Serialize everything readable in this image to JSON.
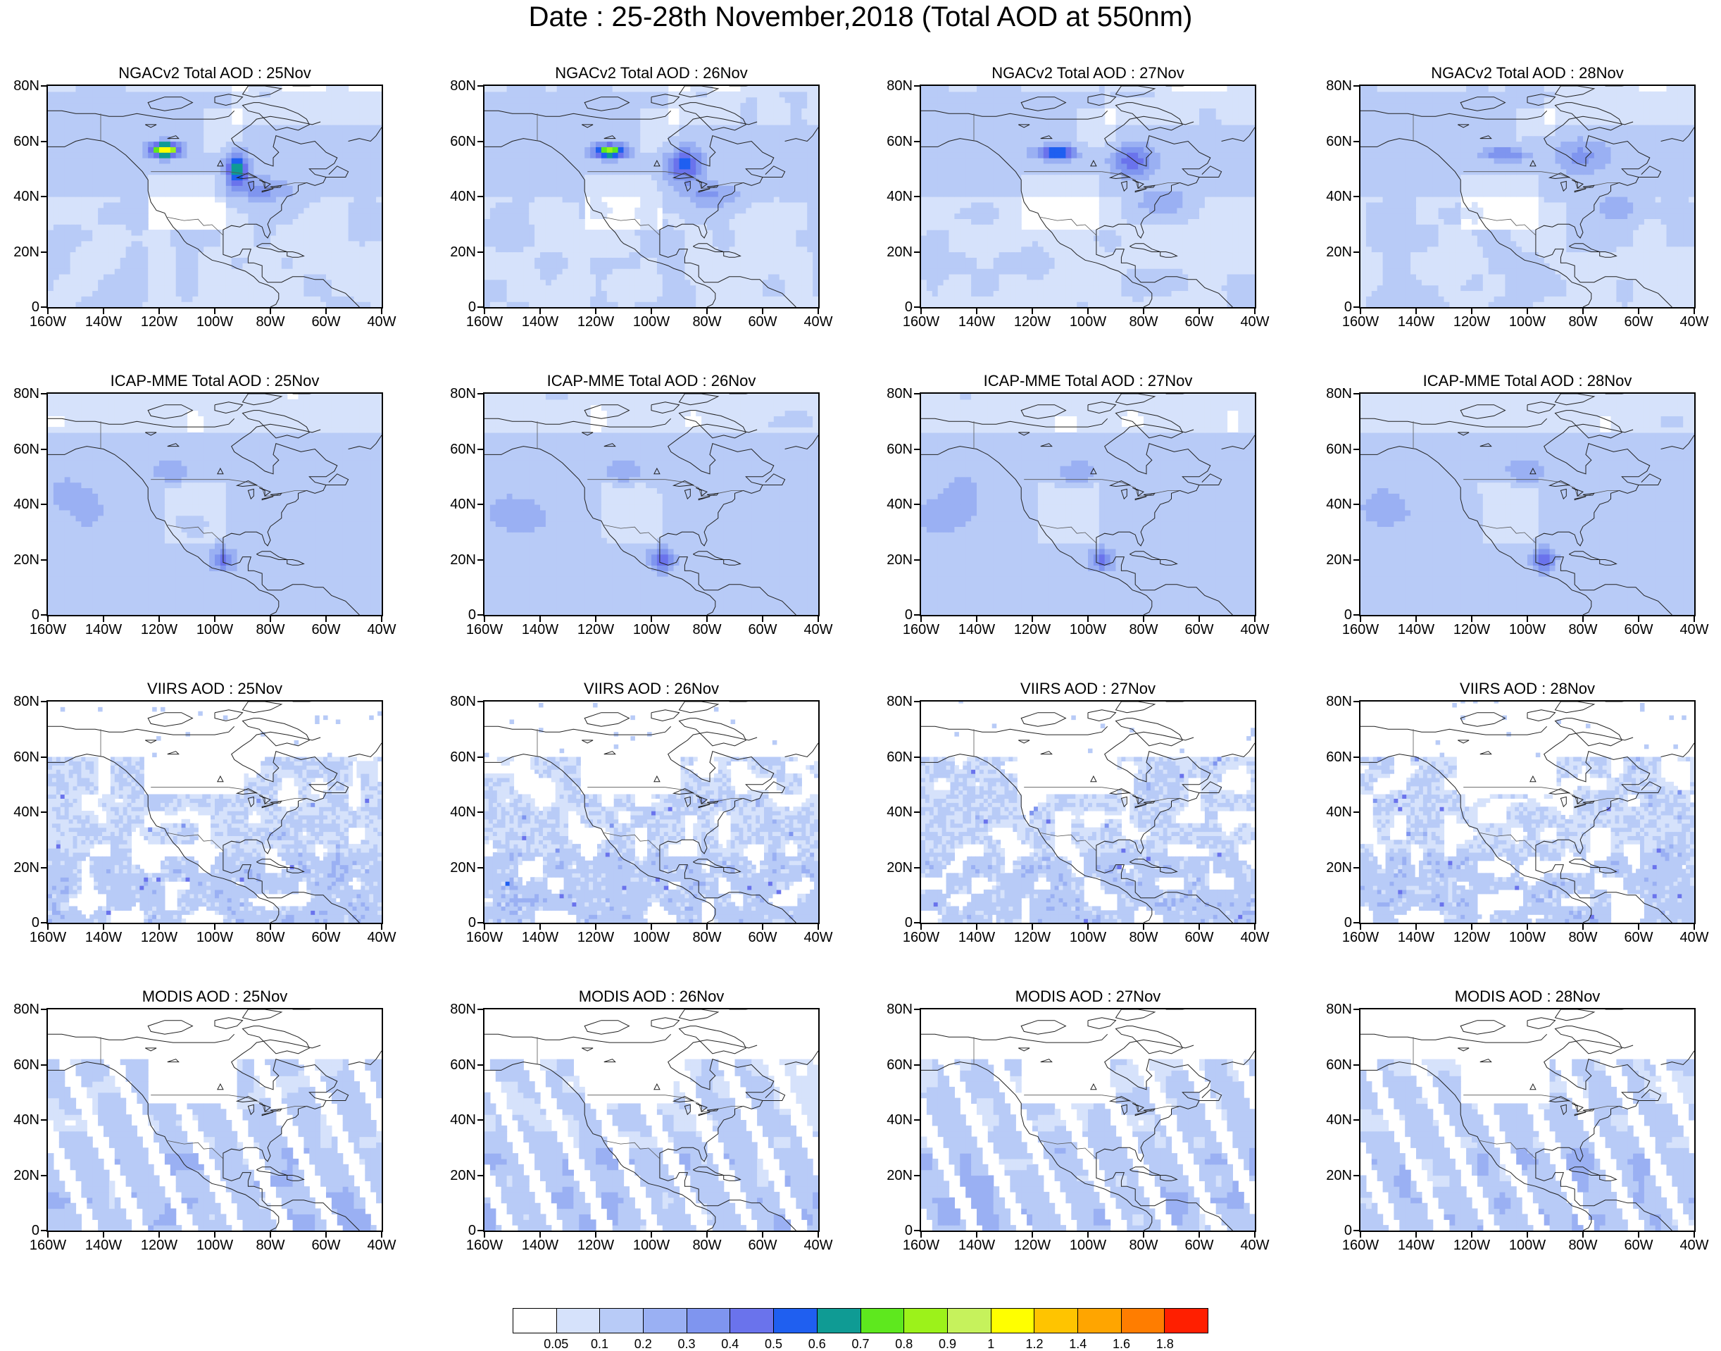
{
  "title": "Date : 25-28th November,2018 (Total AOD at 550nm)",
  "lat_labels": [
    "80N",
    "60N",
    "40N",
    "20N",
    "0"
  ],
  "lon_labels": [
    "160W",
    "140W",
    "120W",
    "100W",
    "80W",
    "60W",
    "40W"
  ],
  "panels": [
    {
      "title": "NGACv2 Total AOD : 25Nov",
      "model": "ngac",
      "day": 25
    },
    {
      "title": "NGACv2 Total AOD : 26Nov",
      "model": "ngac",
      "day": 26
    },
    {
      "title": "NGACv2 Total AOD : 27Nov",
      "model": "ngac",
      "day": 27
    },
    {
      "title": "NGACv2 Total AOD : 28Nov",
      "model": "ngac",
      "day": 28
    },
    {
      "title": "ICAP-MME Total AOD : 25Nov",
      "model": "icap",
      "day": 25
    },
    {
      "title": "ICAP-MME Total AOD : 26Nov",
      "model": "icap",
      "day": 26
    },
    {
      "title": "ICAP-MME Total AOD : 27Nov",
      "model": "icap",
      "day": 27
    },
    {
      "title": "ICAP-MME Total AOD : 28Nov",
      "model": "icap",
      "day": 28
    },
    {
      "title": "VIIRS AOD : 25Nov",
      "model": "viirs",
      "day": 25
    },
    {
      "title": "VIIRS AOD : 26Nov",
      "model": "viirs",
      "day": 26
    },
    {
      "title": "VIIRS AOD : 27Nov",
      "model": "viirs",
      "day": 27
    },
    {
      "title": "VIIRS AOD : 28Nov",
      "model": "viirs",
      "day": 28
    },
    {
      "title": "MODIS AOD : 25Nov",
      "model": "modis",
      "day": 25
    },
    {
      "title": "MODIS AOD : 26Nov",
      "model": "modis",
      "day": 26
    },
    {
      "title": "MODIS AOD : 27Nov",
      "model": "modis",
      "day": 27
    },
    {
      "title": "MODIS AOD : 28Nov",
      "model": "modis",
      "day": 28
    }
  ],
  "colorbar": {
    "colors": [
      "#ffffff",
      "#d6e2fb",
      "#b8cbf7",
      "#9ab0f3",
      "#7f95ef",
      "#6a73ec",
      "#1f5ff0",
      "#0f9b94",
      "#5ee81e",
      "#9cf21a",
      "#c6f25c",
      "#ffff00",
      "#ffc400",
      "#ffa500",
      "#ff7d00",
      "#ff1f00"
    ],
    "labels": [
      "0.05",
      "0.1",
      "0.2",
      "0.3",
      "0.4",
      "0.5",
      "0.6",
      "0.7",
      "0.8",
      "0.9",
      "1",
      "1.2",
      "1.4",
      "1.6",
      "1.8"
    ]
  }
}
